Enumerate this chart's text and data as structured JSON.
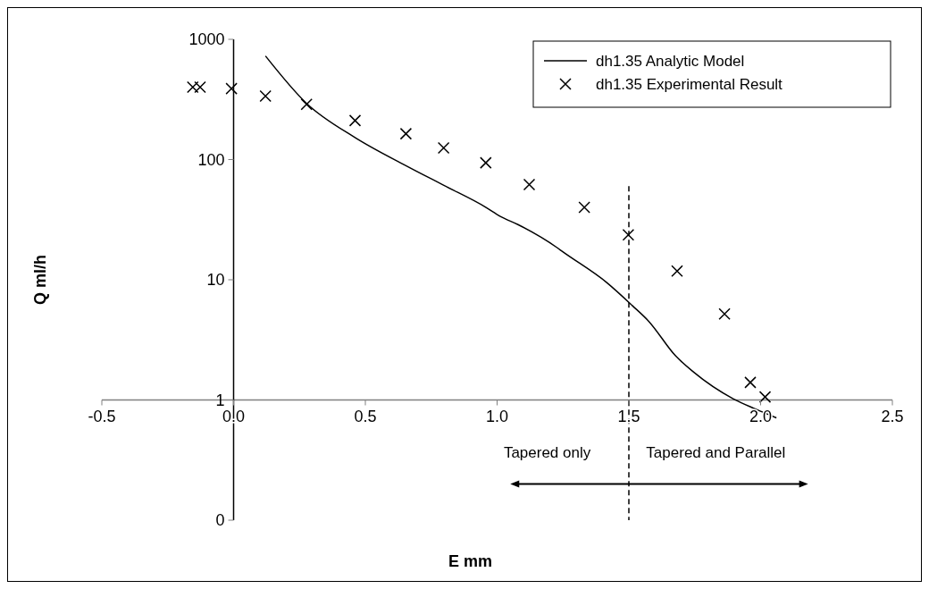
{
  "chart_data": {
    "type": "scatter",
    "xlabel": "E mm",
    "ylabel": "Q ml/h",
    "log": "y",
    "legend": "top right",
    "xlim": [
      -0.5,
      2.5
    ],
    "xticks": [
      {
        "value": -0.5,
        "label": "-0.5"
      },
      {
        "value": 0,
        "label": "0.0"
      },
      {
        "value": 0.5,
        "label": "0.5"
      },
      {
        "value": 1,
        "label": "1.0"
      },
      {
        "value": 1.5,
        "label": "1.5"
      },
      {
        "value": 2,
        "label": "2.0"
      },
      {
        "value": 2.5,
        "label": "2.5"
      }
    ],
    "ylim": [
      0.1,
      1000
    ],
    "yticks": [
      {
        "value": 0.1,
        "label": "0"
      },
      1,
      10,
      100,
      1000
    ],
    "series": [
      {
        "name": "dh1.35 Analytic Model",
        "type": "line",
        "line_style": "solid",
        "color": "#000000",
        "x": [
          0.121,
          0.277,
          0.462,
          0.654,
          0.798,
          0.958,
          1.012,
          1.079,
          1.226,
          1.249,
          1.418,
          1.513,
          1.576,
          1.677,
          1.745,
          1.897,
          1.981,
          2.06
        ],
        "values": [
          727,
          293,
          152,
          89,
          61,
          40,
          33.7,
          28.8,
          18.6,
          17.1,
          9.4,
          6.1,
          4.5,
          2.33,
          1.71,
          1.02,
          0.84,
          0.71
        ]
      },
      {
        "name": "dh1.35 Experimental Result",
        "marker": "cross",
        "color": "#000000",
        "x": [
          -0.155,
          -0.127,
          -0.008,
          0.121,
          0.277,
          0.461,
          0.654,
          0.797,
          0.957,
          1.122,
          1.331,
          1.498,
          1.683,
          1.863,
          1.961,
          2.017
        ],
        "values": [
          400,
          400,
          389,
          337,
          288,
          211,
          164,
          125,
          94,
          62,
          40,
          23.6,
          11.8,
          5.2,
          1.4,
          1.06
        ]
      }
    ],
    "ref_lines": [
      {
        "axis": "x",
        "value": 1.5,
        "color": "#000000",
        "line_style": "dashed"
      }
    ],
    "annotations": [
      "Tapered only",
      "Tapered and Parallel"
    ]
  }
}
